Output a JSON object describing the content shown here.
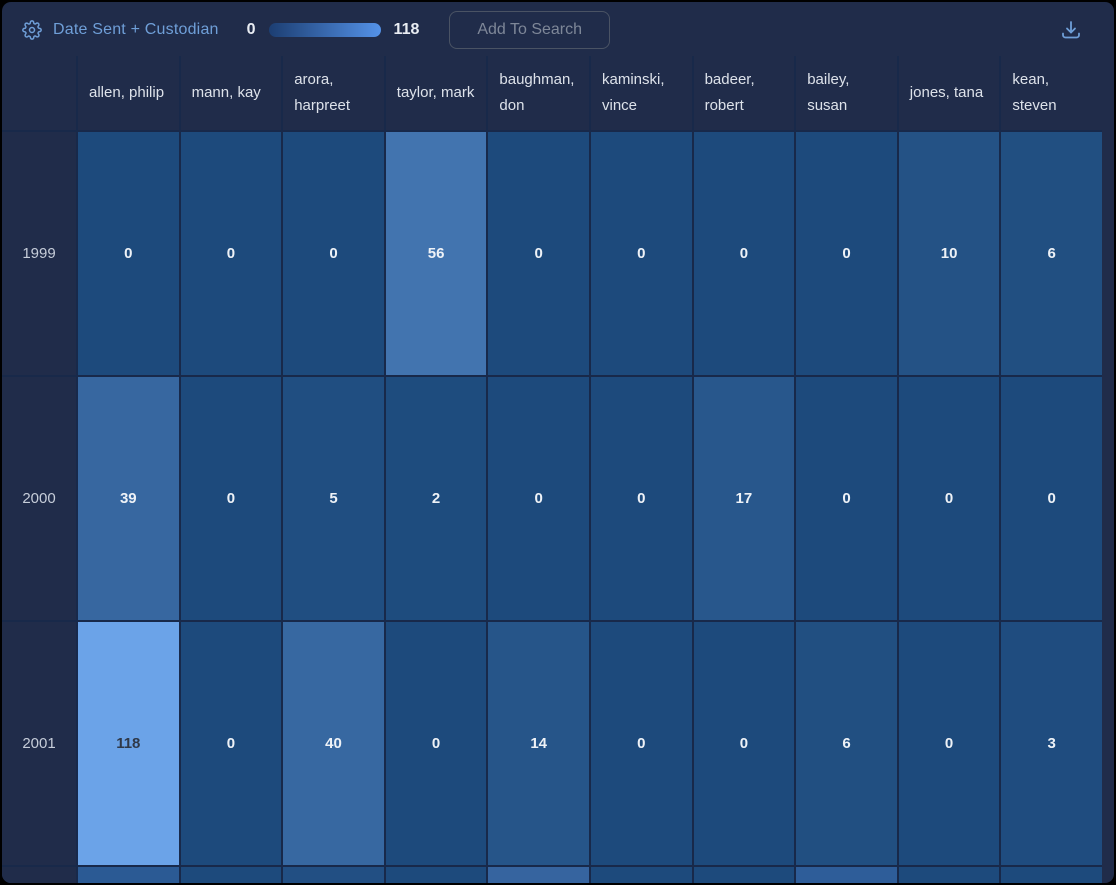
{
  "topbar": {
    "title": "Date Sent + Custodian",
    "legend_min": "0",
    "legend_max": "118",
    "add_to_search_label": "Add To Search"
  },
  "colors": {
    "background": "#202c4a",
    "accent_blue": "#6f9fd8",
    "grid_line": "#18294a",
    "legend_gradient_start": "#1c3e72",
    "legend_gradient_end": "#5492e8",
    "cell_text_light": "#eef2f7",
    "cell_text_dark": "#2f3949"
  },
  "chart_data": {
    "type": "heatmap",
    "title": "Date Sent + Custodian",
    "columns": [
      "allen, philip",
      "mann, kay",
      "arora, harpreet",
      "taylor, mark",
      "baughman, don",
      "kaminski, vince",
      "badeer, robert",
      "bailey, susan",
      "jones, tana",
      "kean, steven"
    ],
    "rows": [
      "1999",
      "2000",
      "2001"
    ],
    "values": [
      [
        0,
        0,
        0,
        56,
        0,
        0,
        0,
        0,
        10,
        6
      ],
      [
        39,
        0,
        5,
        2,
        0,
        0,
        17,
        0,
        0,
        0
      ],
      [
        118,
        0,
        40,
        0,
        14,
        0,
        0,
        6,
        0,
        3
      ]
    ],
    "value_range": [
      0,
      118
    ],
    "color_scale": {
      "min": "#1d4a7c",
      "max": "#6ba3e8"
    },
    "partial_next_row_colors": [
      "#2b5a94",
      "#1d4a7c",
      "#224f83",
      "#1d4a7c",
      "#36649f",
      "#1d4a7c",
      "#1d4a7c",
      "#2e5d99",
      "#1d4a7c",
      "#1d4a7c"
    ]
  }
}
